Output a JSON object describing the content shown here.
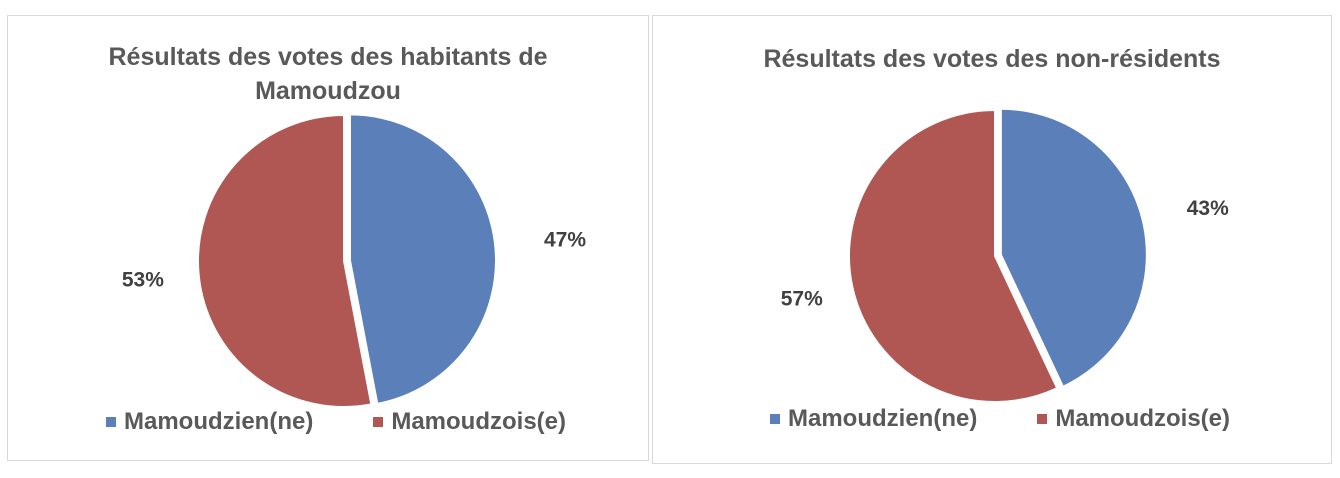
{
  "chart_data": [
    {
      "type": "pie",
      "title": "Résultats des votes des habitants de Mamoudzou",
      "categories": [
        "Mamoudzien(ne)",
        "Mamoudzois(e)"
      ],
      "values": [
        47,
        53
      ],
      "labels": [
        "47%",
        "53%"
      ],
      "colors": [
        "#5b80b9",
        "#b05753"
      ],
      "legend": "bottom"
    },
    {
      "type": "pie",
      "title": "Résultats des votes des non-résidents",
      "categories": [
        "Mamoudzien(ne)",
        "Mamoudzois(e)"
      ],
      "values": [
        43,
        57
      ],
      "labels": [
        "43%",
        "57%"
      ],
      "colors": [
        "#5b80b9",
        "#b05753"
      ],
      "legend": "bottom"
    }
  ]
}
